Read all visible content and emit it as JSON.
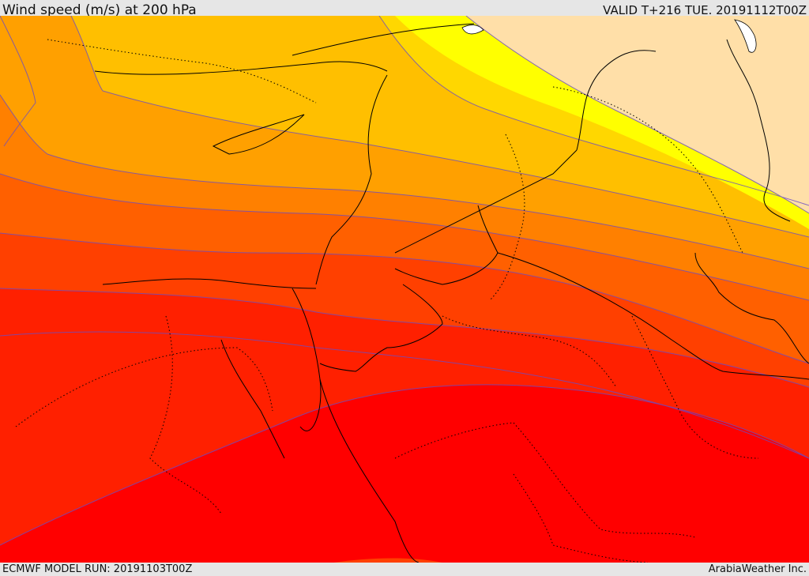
{
  "header": {
    "title": "Wind speed (m/s) at 200 hPa",
    "valid": "VALID T+216 TUE. 20191112T00Z"
  },
  "footer": {
    "model_run": "ECMWF MODEL RUN: 20191103T00Z",
    "credit": "ArabiaWeather Inc."
  },
  "colors": {
    "band_0": "#ffdfa8",
    "band_1": "#ffff00",
    "band_2": "#ffd700",
    "band_3": "#ffbf00",
    "band_4": "#ffa000",
    "band_5": "#ff8000",
    "band_6": "#ff6000",
    "band_7": "#ff4000",
    "band_8": "#ff2000",
    "band_9": "#ff0000",
    "contour": "#6a4cc6",
    "border": "#000000"
  }
}
